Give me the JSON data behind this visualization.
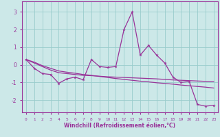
{
  "x": [
    0,
    1,
    2,
    3,
    4,
    5,
    6,
    7,
    8,
    9,
    10,
    11,
    12,
    13,
    14,
    15,
    16,
    17,
    18,
    19,
    20,
    21,
    22,
    23
  ],
  "line_main": [
    0.3,
    -0.2,
    -0.5,
    -0.55,
    -1.05,
    -0.8,
    -0.7,
    -0.85,
    0.3,
    -0.1,
    -0.15,
    -0.1,
    2.0,
    3.0,
    0.55,
    1.1,
    0.55,
    0.1,
    -0.7,
    -1.0,
    -0.95,
    -2.25,
    -2.35,
    -2.3
  ],
  "line_trend1": [
    0.3,
    0.1,
    -0.1,
    -0.3,
    -0.45,
    -0.5,
    -0.55,
    -0.6,
    -0.62,
    -0.65,
    -0.68,
    -0.7,
    -0.72,
    -0.74,
    -0.76,
    -0.78,
    -0.8,
    -0.83,
    -0.86,
    -0.88,
    -0.9,
    -0.92,
    -0.94,
    -0.96
  ],
  "line_trend2": [
    0.3,
    0.15,
    -0.05,
    -0.2,
    -0.35,
    -0.42,
    -0.48,
    -0.55,
    -0.6,
    -0.66,
    -0.72,
    -0.78,
    -0.83,
    -0.88,
    -0.93,
    -0.97,
    -1.02,
    -1.06,
    -1.1,
    -1.15,
    -1.19,
    -1.23,
    -1.27,
    -1.32
  ],
  "color": "#993399",
  "bg_color": "#cce8e8",
  "grid_color": "#99cccc",
  "xlabel": "Windchill (Refroidissement éolien,°C)",
  "ylim": [
    -2.7,
    3.6
  ],
  "xlim": [
    -0.5,
    23.5
  ],
  "yticks": [
    -2,
    -1,
    0,
    1,
    2,
    3
  ],
  "xticks": [
    0,
    1,
    2,
    3,
    4,
    5,
    6,
    7,
    8,
    9,
    10,
    11,
    12,
    13,
    14,
    15,
    16,
    17,
    18,
    19,
    20,
    21,
    22,
    23
  ]
}
